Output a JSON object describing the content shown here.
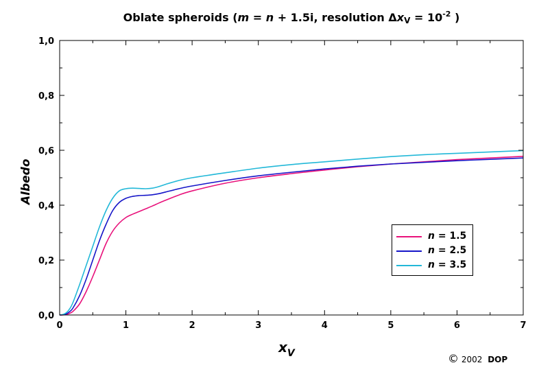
{
  "chart_data": {
    "type": "line",
    "title": {
      "prefix": "Oblate spheroids (",
      "m": "m",
      "eq": " = ",
      "n": "n",
      "rest": " + 1.5i, resolution ",
      "delta": "Δ",
      "x": "x",
      "sub": "V",
      "eq2": " = 10",
      "sup": "-2",
      "suffix": " )"
    },
    "xlabel": {
      "main": "x",
      "sub": "V"
    },
    "ylabel": "Albedo",
    "xlim": [
      0,
      7
    ],
    "ylim": [
      0,
      1
    ],
    "xticks": [
      "0",
      "1",
      "2",
      "3",
      "4",
      "5",
      "6",
      "7"
    ],
    "yticks": [
      "0,0",
      "0,2",
      "0,4",
      "0,6",
      "0,8",
      "1,0"
    ],
    "grid": false,
    "legend_position": "lower-right",
    "series": [
      {
        "legend_var": "n",
        "legend_rest": " = 1.5",
        "color": "#e8107a",
        "x": [
          0,
          0.05,
          0.1,
          0.15,
          0.2,
          0.3,
          0.4,
          0.5,
          0.6,
          0.7,
          0.8,
          0.9,
          1.0,
          1.1,
          1.2,
          1.3,
          1.4,
          1.5,
          1.6,
          1.8,
          2.0,
          2.5,
          3.0,
          3.5,
          4.0,
          4.5,
          5.0,
          5.5,
          6.0,
          6.5,
          7.0
        ],
        "y": [
          0,
          0,
          0.002,
          0.006,
          0.013,
          0.04,
          0.085,
          0.14,
          0.2,
          0.26,
          0.305,
          0.335,
          0.355,
          0.367,
          0.377,
          0.387,
          0.397,
          0.408,
          0.418,
          0.437,
          0.452,
          0.48,
          0.5,
          0.515,
          0.528,
          0.54,
          0.55,
          0.558,
          0.566,
          0.572,
          0.578
        ]
      },
      {
        "legend_var": "n",
        "legend_rest": " = 2.5",
        "color": "#1515c8",
        "x": [
          0,
          0.05,
          0.1,
          0.15,
          0.2,
          0.3,
          0.4,
          0.5,
          0.6,
          0.7,
          0.8,
          0.9,
          1.0,
          1.1,
          1.2,
          1.3,
          1.4,
          1.5,
          1.6,
          1.8,
          2.0,
          2.5,
          3.0,
          3.5,
          4.0,
          4.5,
          5.0,
          5.5,
          6.0,
          6.5,
          7.0
        ],
        "y": [
          0,
          0.001,
          0.004,
          0.012,
          0.025,
          0.07,
          0.13,
          0.2,
          0.27,
          0.33,
          0.38,
          0.41,
          0.425,
          0.432,
          0.435,
          0.436,
          0.438,
          0.442,
          0.448,
          0.46,
          0.47,
          0.49,
          0.507,
          0.52,
          0.532,
          0.542,
          0.55,
          0.556,
          0.562,
          0.567,
          0.572
        ]
      },
      {
        "legend_var": "n",
        "legend_rest": " = 3.5",
        "color": "#22b8d8",
        "x": [
          0,
          0.05,
          0.1,
          0.15,
          0.2,
          0.3,
          0.4,
          0.5,
          0.6,
          0.7,
          0.8,
          0.9,
          1.0,
          1.1,
          1.2,
          1.3,
          1.4,
          1.5,
          1.6,
          1.8,
          2.0,
          2.5,
          3.0,
          3.5,
          4.0,
          4.5,
          5.0,
          5.5,
          6.0,
          6.5,
          7.0
        ],
        "y": [
          0,
          0.002,
          0.008,
          0.022,
          0.045,
          0.11,
          0.18,
          0.25,
          0.32,
          0.38,
          0.425,
          0.452,
          0.46,
          0.462,
          0.461,
          0.46,
          0.462,
          0.468,
          0.476,
          0.49,
          0.5,
          0.518,
          0.535,
          0.548,
          0.558,
          0.568,
          0.577,
          0.584,
          0.589,
          0.594,
          0.599
        ]
      }
    ]
  },
  "copyright": {
    "symbol": "©",
    "year": "2002",
    "owner": "DOP"
  }
}
